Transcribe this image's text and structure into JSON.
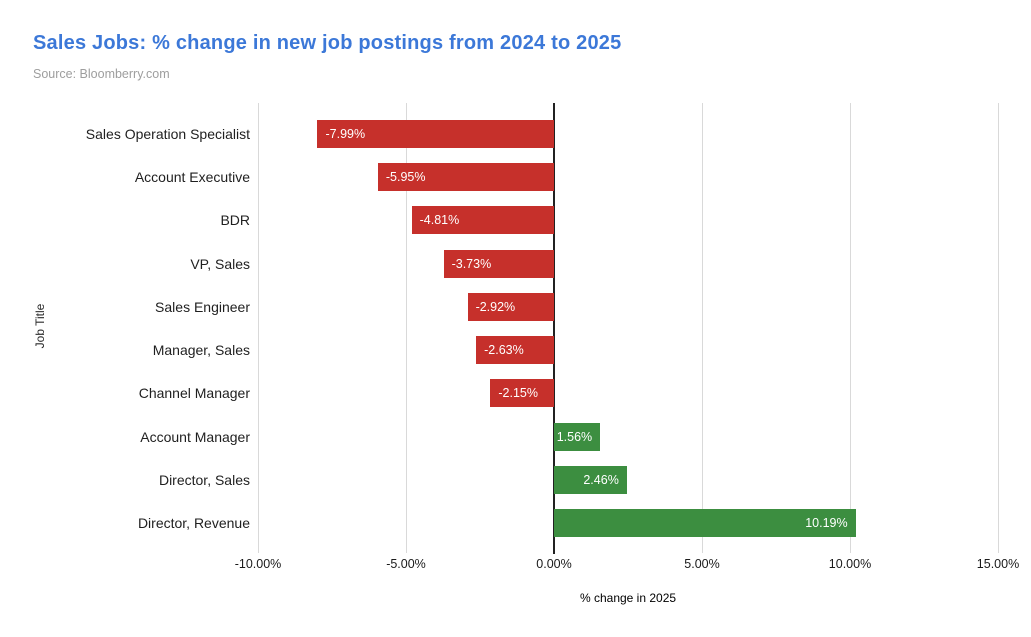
{
  "header": {
    "title": "Sales Jobs: % change in new job postings from 2024 to 2025",
    "source": "Source: Bloomberry.com"
  },
  "chart_data": {
    "type": "bar",
    "orientation": "horizontal",
    "title": "Sales Jobs: % change in new job postings from 2024 to 2025",
    "subtitle": "Source: Bloomberry.com",
    "categories": [
      "Sales Operation Specialist",
      "Account Executive",
      "BDR",
      "VP, Sales",
      "Sales Engineer",
      "Manager, Sales",
      "Channel Manager",
      "Account Manager",
      "Director, Sales",
      "Director, Revenue"
    ],
    "values": [
      -7.99,
      -5.95,
      -4.81,
      -3.73,
      -2.92,
      -2.63,
      -2.15,
      1.56,
      2.46,
      10.19
    ],
    "value_labels": [
      "-7.99%",
      "-5.95%",
      "-4.81%",
      "-3.73%",
      "-2.92%",
      "-2.63%",
      "-2.15%",
      "1.56%",
      "2.46%",
      "10.19%"
    ],
    "xlabel": "% change in 2025",
    "ylabel": "Job Title",
    "xlim": [
      -10,
      15
    ],
    "xtick_values": [
      -10,
      -5,
      0,
      5,
      10,
      15
    ],
    "xtick_labels": [
      "-10.00%",
      "-5.00%",
      "0.00%",
      "5.00%",
      "10.00%",
      "15.00%"
    ],
    "grid": "vertical-on",
    "legend": "none",
    "colors": {
      "negative_bar": "#c6302b",
      "positive_bar": "#3c8e40",
      "bar_label_text": "#ffffff",
      "gridline": "#d9d9d9",
      "zero_line": "#212121",
      "title": "#3c78d8",
      "source": "#9e9e9e"
    }
  }
}
